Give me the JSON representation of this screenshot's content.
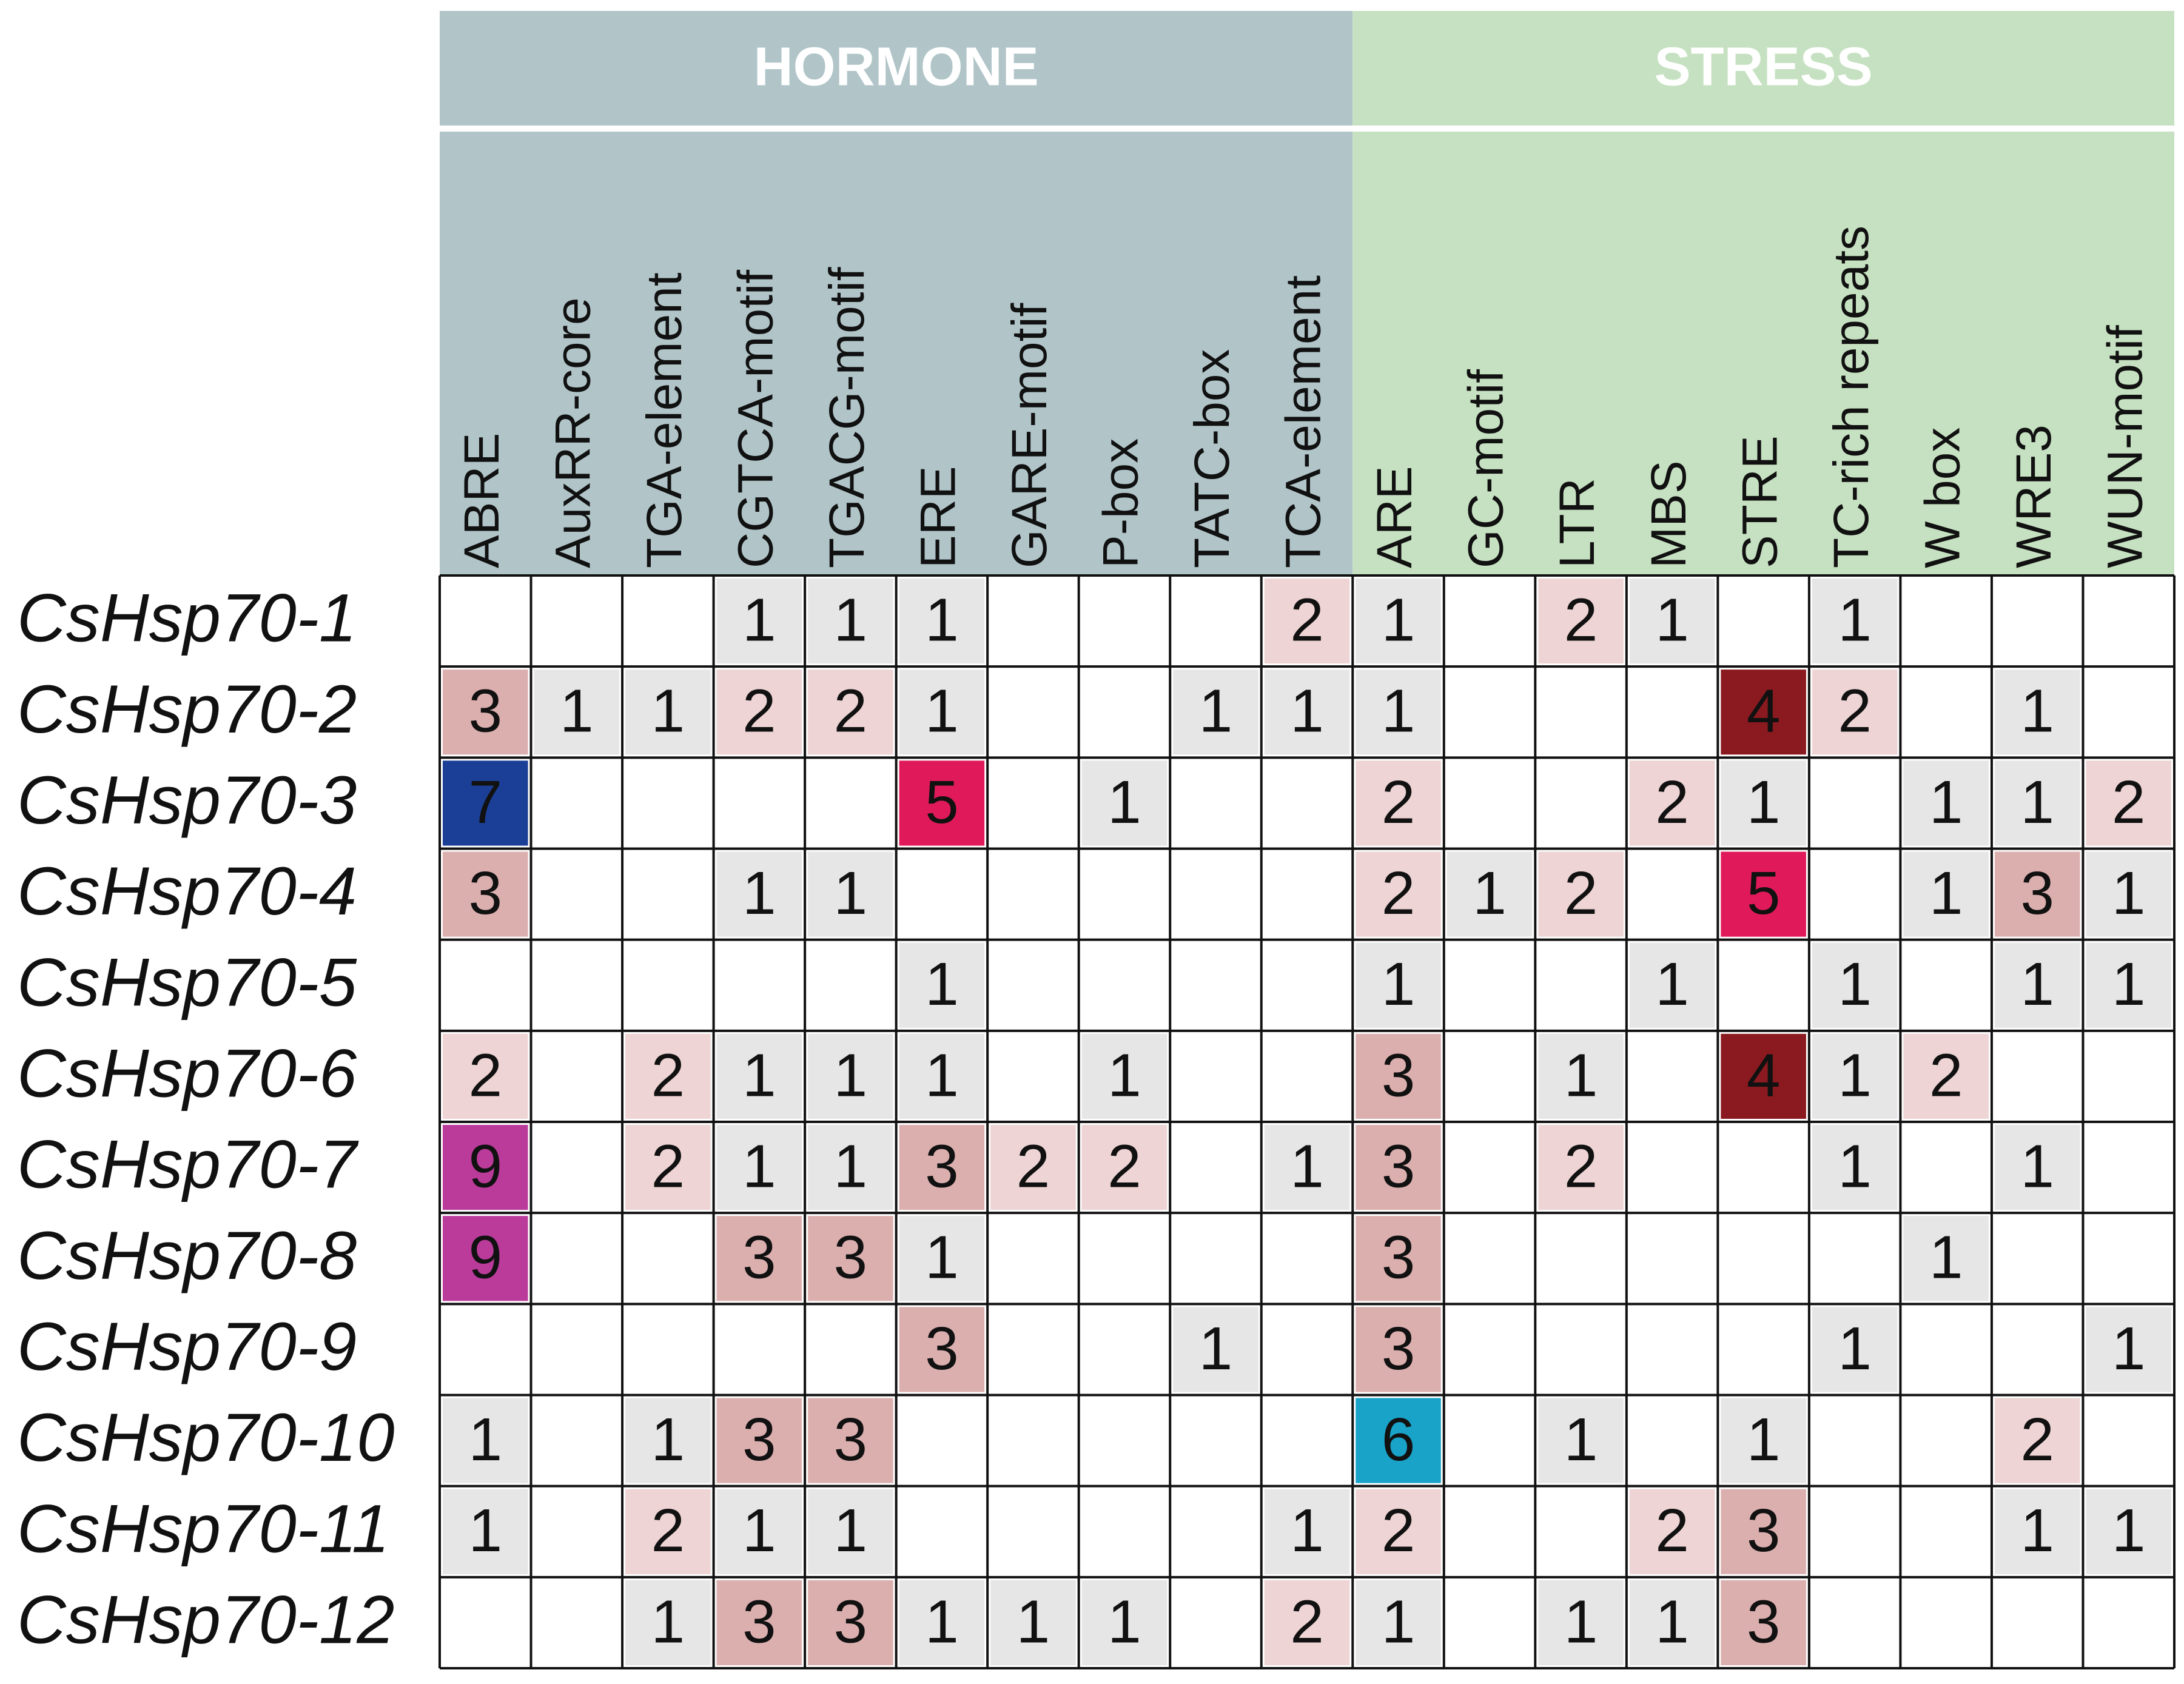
{
  "chart_data": {
    "type": "heatmap",
    "groups": [
      {
        "name": "HORMONE",
        "count": 10,
        "color": "#b1c5c9"
      },
      {
        "name": "STRESS",
        "count": 9,
        "color": "#c6e1c1"
      }
    ],
    "columns": [
      "ABRE",
      "AuxRR-core",
      "TGA-element",
      "CGTCA-motif",
      "TGACG-motif",
      "ERE",
      "GARE-motif",
      "P-box",
      "TATC-box",
      "TCA-element",
      "ARE",
      "GC-motif",
      "LTR",
      "MBS",
      "STRE",
      "TC-rich repeats",
      "W box",
      "WRE3",
      "WUN-motif"
    ],
    "rows": [
      "CsHsp70-1",
      "CsHsp70-2",
      "CsHsp70-3",
      "CsHsp70-4",
      "CsHsp70-5",
      "CsHsp70-6",
      "CsHsp70-7",
      "CsHsp70-8",
      "CsHsp70-9",
      "CsHsp70-10",
      "CsHsp70-11",
      "CsHsp70-12"
    ],
    "values": [
      [
        null,
        null,
        null,
        1,
        1,
        1,
        null,
        null,
        null,
        2,
        1,
        null,
        2,
        1,
        null,
        1,
        null,
        null,
        null
      ],
      [
        3,
        1,
        1,
        2,
        2,
        1,
        null,
        null,
        1,
        1,
        1,
        null,
        null,
        null,
        4,
        2,
        null,
        1,
        null
      ],
      [
        7,
        null,
        null,
        null,
        null,
        5,
        null,
        1,
        null,
        null,
        2,
        null,
        null,
        2,
        1,
        null,
        1,
        1,
        2
      ],
      [
        3,
        null,
        null,
        1,
        1,
        null,
        null,
        null,
        null,
        null,
        2,
        1,
        2,
        null,
        5,
        null,
        1,
        3,
        1
      ],
      [
        null,
        null,
        null,
        null,
        null,
        1,
        null,
        null,
        null,
        null,
        1,
        null,
        null,
        1,
        null,
        1,
        null,
        1,
        1
      ],
      [
        2,
        null,
        2,
        1,
        1,
        1,
        null,
        1,
        null,
        null,
        3,
        null,
        1,
        null,
        4,
        1,
        2,
        null,
        null
      ],
      [
        9,
        null,
        2,
        1,
        1,
        3,
        2,
        2,
        null,
        1,
        3,
        null,
        2,
        null,
        null,
        1,
        null,
        1,
        null
      ],
      [
        9,
        null,
        null,
        3,
        3,
        1,
        null,
        null,
        null,
        null,
        3,
        null,
        null,
        null,
        null,
        null,
        1,
        null,
        null
      ],
      [
        null,
        null,
        null,
        null,
        null,
        3,
        null,
        null,
        1,
        null,
        3,
        null,
        null,
        null,
        null,
        1,
        null,
        null,
        1
      ],
      [
        1,
        null,
        1,
        3,
        3,
        null,
        null,
        null,
        null,
        null,
        6,
        null,
        1,
        null,
        1,
        null,
        null,
        2,
        null
      ],
      [
        1,
        null,
        2,
        1,
        1,
        null,
        null,
        null,
        null,
        1,
        2,
        null,
        null,
        2,
        3,
        null,
        null,
        1,
        1
      ],
      [
        null,
        null,
        1,
        3,
        3,
        1,
        1,
        1,
        null,
        2,
        1,
        null,
        1,
        1,
        3,
        null,
        null,
        null,
        null
      ]
    ],
    "colors": {
      "1": "#e6e6e6",
      "2": "#eed4d4",
      "3": "#dcafaf",
      "4": "#8a1a1f",
      "5": "#e01a5a",
      "6": "#1aa3c8",
      "7": "#1b3f96",
      "9": "#bb3b9b"
    }
  }
}
